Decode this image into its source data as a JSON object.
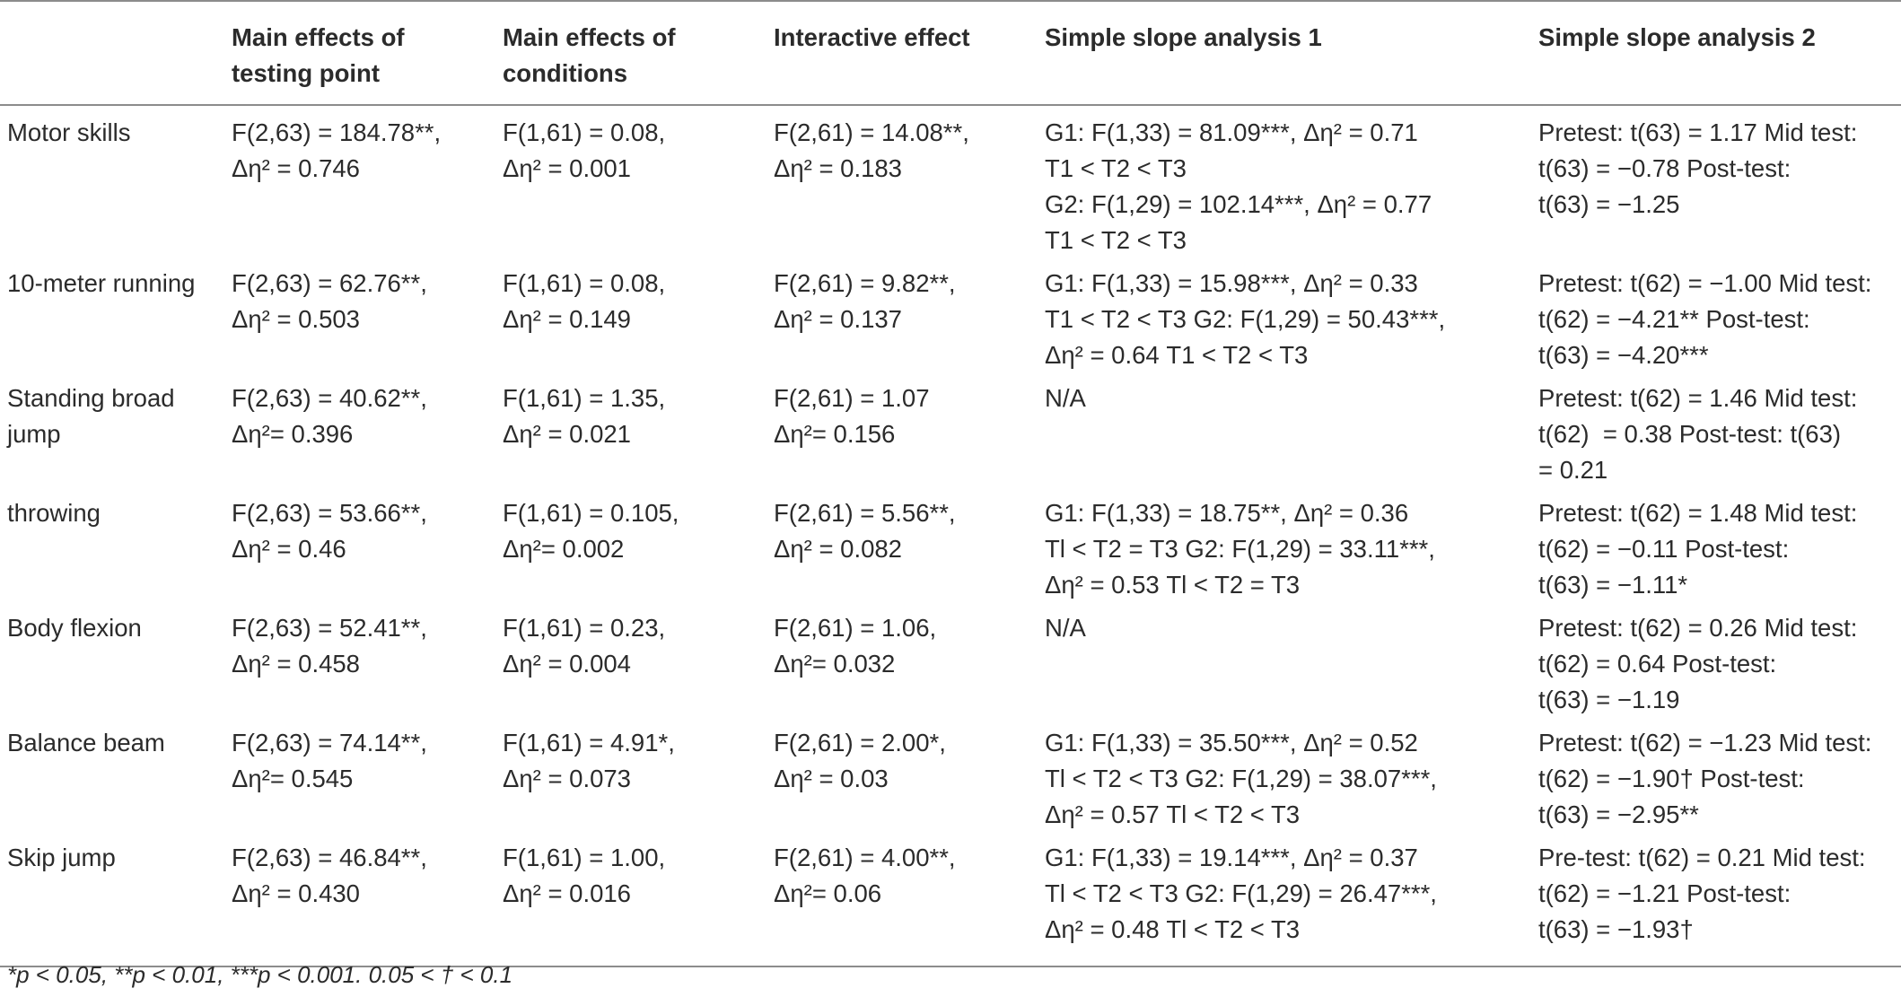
{
  "table": {
    "headers": [
      "",
      "Main effects of testing point",
      "Main effects of conditions",
      "Interactive effect",
      "Simple slope analysis 1",
      "Simple slope analysis 2"
    ],
    "rows": [
      {
        "label": "Motor skills",
        "cells": [
          [
            "F(2,63) = 184.78**,",
            "Δη² = 0.746"
          ],
          [
            "F(1,61) = 0.08,",
            "Δη² = 0.001"
          ],
          [
            "F(2,61) = 14.08**,",
            "Δη² = 0.183"
          ],
          [
            "G1: F(1,33) = 81.09***, Δη² = 0.71",
            "T1 < T2 < T3",
            "G2: F(1,29) = 102.14***, Δη² = 0.77",
            "T1 < T2 < T3"
          ],
          [
            "Pretest: t(63) = 1.17 Mid test:",
            "t(63) = −0.78 Post-test:",
            "t(63) = −1.25"
          ]
        ]
      },
      {
        "label": "10-meter running",
        "cells": [
          [
            "F(2,63) = 62.76**,",
            "Δη² = 0.503"
          ],
          [
            "F(1,61) = 0.08,",
            "Δη² = 0.149"
          ],
          [
            "F(2,61) = 9.82**,",
            "Δη² = 0.137"
          ],
          [
            "G1: F(1,33) = 15.98***, Δη² = 0.33",
            "T1 < T2 < T3 G2: F(1,29) = 50.43***,",
            "Δη² = 0.64 T1 < T2 < T3"
          ],
          [
            "Pretest: t(62) = −1.00 Mid test:",
            "t(62) = −4.21** Post-test:",
            "t(63) = −4.20***"
          ]
        ]
      },
      {
        "label": "Standing broad jump",
        "cells": [
          [
            "F(2,63) = 40.62**,",
            "Δη²= 0.396"
          ],
          [
            "F(1,61) = 1.35,",
            "Δη² = 0.021"
          ],
          [
            "F(2,61) = 1.07",
            "Δη²= 0.156"
          ],
          [
            "N/A"
          ],
          [
            "Pretest: t(62) = 1.46 Mid test:",
            "t(62)  = 0.38 Post-test: t(63)",
            "= 0.21"
          ]
        ]
      },
      {
        "label": "throwing",
        "cells": [
          [
            "F(2,63) = 53.66**,",
            "Δη² = 0.46"
          ],
          [
            "F(1,61) = 0.105,",
            "Δη²= 0.002"
          ],
          [
            "F(2,61) = 5.56**,",
            "Δη² = 0.082"
          ],
          [
            "G1: F(1,33) = 18.75**, Δη² = 0.36",
            "Tl < T2 = T3 G2: F(1,29) = 33.11***,",
            "Δη² = 0.53 Tl < T2 = T3"
          ],
          [
            "Pretest: t(62) = 1.48 Mid test:",
            "t(62) = −0.11 Post-test:",
            "t(63) = −1.11*"
          ]
        ]
      },
      {
        "label": "Body flexion",
        "cells": [
          [
            "F(2,63) = 52.41**,",
            "Δη² = 0.458"
          ],
          [
            "F(1,61) = 0.23,",
            "Δη² = 0.004"
          ],
          [
            "F(2,61) = 1.06,",
            "Δη²= 0.032"
          ],
          [
            "N/A"
          ],
          [
            "Pretest: t(62) = 0.26 Mid test:",
            "t(62) = 0.64 Post-test:",
            "t(63) = −1.19"
          ]
        ]
      },
      {
        "label": "Balance beam",
        "cells": [
          [
            "F(2,63) = 74.14**,",
            "Δη²= 0.545"
          ],
          [
            "F(1,61) = 4.91*,",
            "Δη² = 0.073"
          ],
          [
            "F(2,61) = 2.00*,",
            "Δη² = 0.03"
          ],
          [
            "G1: F(1,33) = 35.50***, Δη² = 0.52",
            "Tl < T2 < T3 G2: F(1,29) = 38.07***,",
            "Δη² = 0.57 Tl < T2 < T3"
          ],
          [
            "Pretest: t(62) = −1.23 Mid test:",
            "t(62) = −1.90† Post-test:",
            "t(63) = −2.95**"
          ]
        ]
      },
      {
        "label": "Skip jump",
        "cells": [
          [
            "F(2,63) = 46.84**,",
            "Δη² = 0.430"
          ],
          [
            "F(1,61) = 1.00,",
            "Δη² = 0.016"
          ],
          [
            "F(2,61) = 4.00**,",
            "Δη²= 0.06"
          ],
          [
            "G1: F(1,33) = 19.14***, Δη² = 0.37",
            "Tl < T2 < T3 G2: F(1,29) = 26.47***,",
            "Δη² = 0.48 Tl < T2 < T3"
          ],
          [
            "Pre-test: t(62) = 0.21 Mid test:",
            "t(62) = −1.21 Post-test:",
            "t(63) = −1.93†"
          ]
        ]
      }
    ]
  },
  "footnote": "*p < 0.05, **p < 0.01, ***p < 0.001. 0.05 < † < 0.1"
}
